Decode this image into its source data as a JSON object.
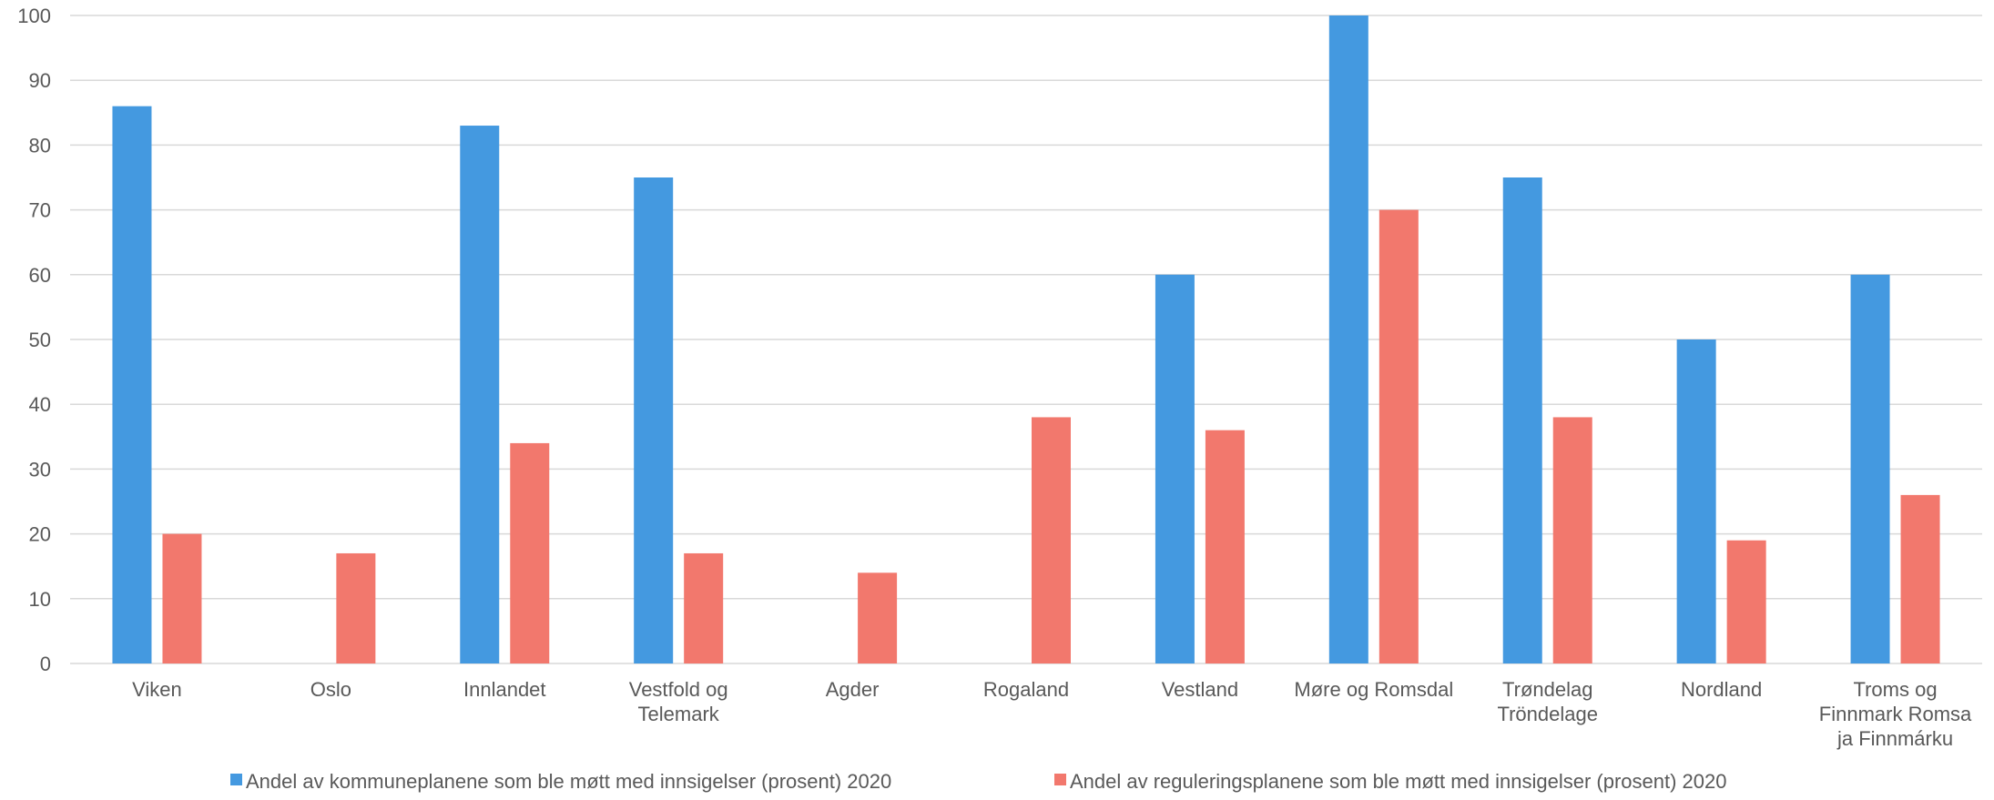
{
  "chart_data": {
    "type": "bar",
    "categories": [
      [
        "Viken"
      ],
      [
        "Oslo"
      ],
      [
        "Innlandet"
      ],
      [
        "Vestfold og",
        "Telemark"
      ],
      [
        "Agder"
      ],
      [
        "Rogaland"
      ],
      [
        "Vestland"
      ],
      [
        "Møre og Romsdal"
      ],
      [
        "Trøndelag",
        "Tröndelage"
      ],
      [
        "Nordland"
      ],
      [
        "Troms og",
        "Finnmark Romsa",
        "ja Finnmárku"
      ]
    ],
    "series": [
      {
        "name": "Andel av kommuneplanene som ble møtt med innsigelser (prosent) 2020",
        "color": "#4499E0",
        "values": [
          86,
          null,
          83,
          75,
          null,
          null,
          60,
          100,
          75,
          50,
          60
        ]
      },
      {
        "name": "Andel av reguleringsplanene som ble møtt med innsigelser (prosent) 2020",
        "color": "#F2786D",
        "values": [
          20,
          17,
          34,
          17,
          14,
          38,
          36,
          70,
          38,
          19,
          26
        ]
      }
    ],
    "ylim": [
      0,
      100
    ],
    "yticks": [
      "0",
      "10",
      "20",
      "30",
      "40",
      "50",
      "60",
      "70",
      "80",
      "90",
      "100"
    ],
    "grid": true,
    "legend_position": "bottom",
    "gridColor": "#D9D9D9",
    "textColor": "#595959"
  }
}
